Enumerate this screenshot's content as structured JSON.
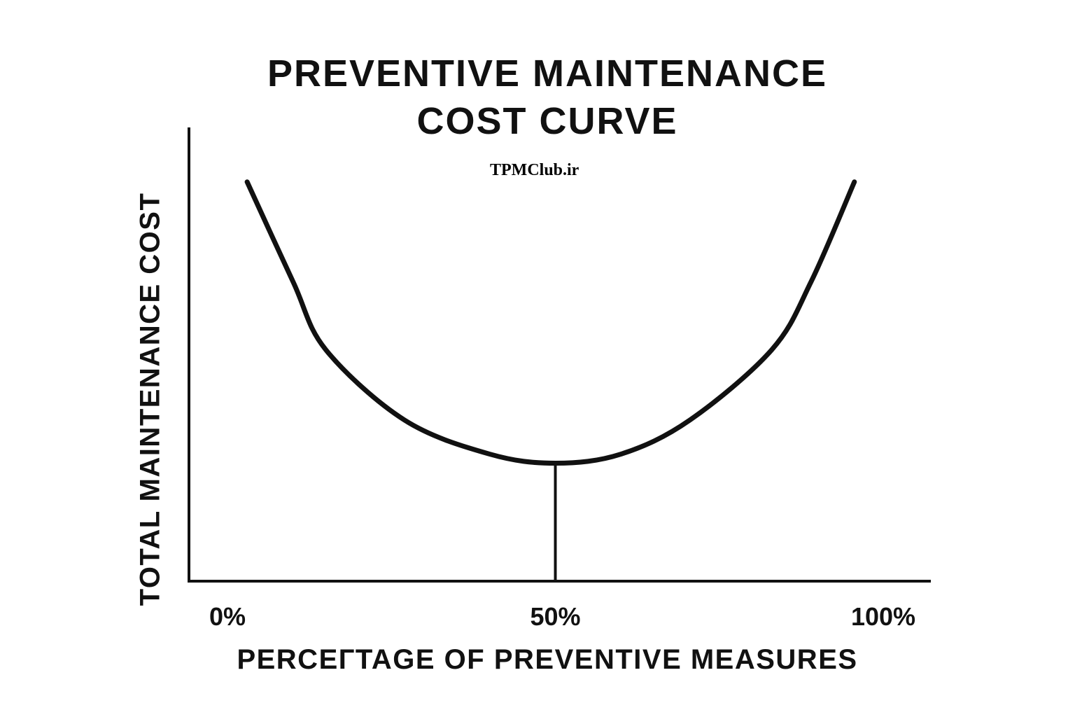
{
  "chart_data": {
    "type": "line",
    "title": [
      "PREVENTIVE MAINTENANCE",
      "COST CURVE"
    ],
    "watermark": "TPMClub.ir",
    "xlabel": "PERCEГTAGE OF PREVENTIVE MEASURES",
    "ylabel": "TOTAL MAINTENANCE COST",
    "x_ticks": [
      {
        "value": 0,
        "label": "0%"
      },
      {
        "value": 50,
        "label": "50%"
      },
      {
        "value": 100,
        "label": "100%"
      }
    ],
    "xlim": [
      0,
      100
    ],
    "ylim": [
      0,
      100
    ],
    "grid": false,
    "series": [
      {
        "name": "Total maintenance cost",
        "x": [
          3,
          10,
          15,
          27,
          40,
          50,
          60,
          70.5,
          83,
          89,
          95.6
        ],
        "y": [
          88,
          66,
          51,
          35.5,
          28,
          26,
          28,
          35.5,
          51,
          66,
          88
        ]
      }
    ],
    "optimum_marker_x": 50,
    "optimum_marker_y": 26
  }
}
